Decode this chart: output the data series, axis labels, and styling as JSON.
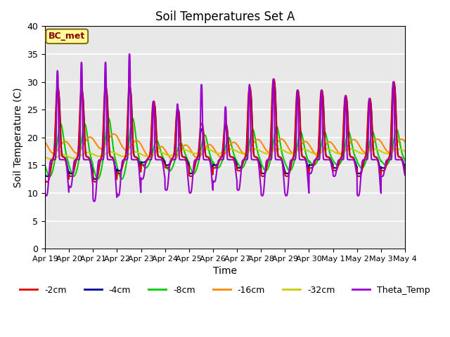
{
  "title": "Soil Temperatures Set A",
  "xlabel": "Time",
  "ylabel": "Soil Temperature (C)",
  "ylim": [
    0,
    40
  ],
  "background_color": "#e8e8e8",
  "grid_color": "white",
  "annotation": "BC_met",
  "legend_entries": [
    "-2cm",
    "-4cm",
    "-8cm",
    "-16cm",
    "-32cm",
    "Theta_Temp"
  ],
  "line_colors": [
    "#dd0000",
    "#000099",
    "#00cc00",
    "#ff8800",
    "#cccc00",
    "#9900cc"
  ],
  "line_widths": [
    1.5,
    1.5,
    1.5,
    1.5,
    1.5,
    1.5
  ],
  "xtick_labels": [
    "Apr 19",
    "Apr 20",
    "Apr 21",
    "Apr 22",
    "Apr 23",
    "Apr 24",
    "Apr 25",
    "Apr 26",
    "Apr 27",
    "Apr 28",
    "Apr 29",
    "Apr 30",
    "May 1",
    "May 2",
    "May 3",
    "May 4"
  ],
  "ytick_values": [
    0,
    5,
    10,
    15,
    20,
    25,
    30,
    35,
    40
  ],
  "figsize": [
    6.4,
    4.8
  ],
  "dpi": 100
}
